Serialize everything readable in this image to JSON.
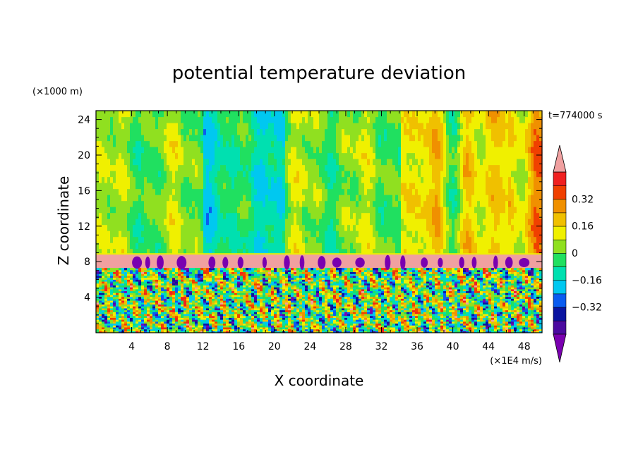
{
  "chart_data": {
    "type": "heatmap",
    "title": "potential temperature deviation",
    "xlabel": "X coordinate",
    "ylabel": "Z coordinate",
    "x_unit": "(×1E4 m/s)",
    "y_unit": "(×1000 m)",
    "time_label": "t=774000 s",
    "xlim": [
      0,
      50
    ],
    "ylim": [
      0,
      25
    ],
    "x_ticks": [
      4,
      8,
      12,
      16,
      20,
      24,
      28,
      32,
      36,
      40,
      44,
      48
    ],
    "y_ticks": [
      4,
      8,
      12,
      16,
      20,
      24
    ],
    "colorbar": {
      "levels": [
        -0.48,
        -0.4,
        -0.32,
        -0.24,
        -0.16,
        -0.08,
        0,
        0.08,
        0.16,
        0.24,
        0.32,
        0.4,
        0.48
      ],
      "tick_labels": [
        "0.32",
        "0.16",
        "0",
        "−0.16",
        "−0.32"
      ],
      "tick_values": [
        0.32,
        0.16,
        0,
        -0.16,
        -0.32
      ],
      "colors": [
        "#7a00b0",
        "#4b0aa0",
        "#0a14a0",
        "#0a5cf0",
        "#00c8f0",
        "#00e0b0",
        "#20e060",
        "#90e020",
        "#f0f000",
        "#f0c000",
        "#f09000",
        "#f04000",
        "#f02020",
        "#f0a0a0"
      ],
      "extend": "both"
    },
    "description_fields": {
      "upper_region_dominant": "green/cyan (near 0 to -0.1)",
      "band_z": [
        7.3,
        8.8
      ],
      "band_value": "above 0.48 (pink)"
    }
  }
}
